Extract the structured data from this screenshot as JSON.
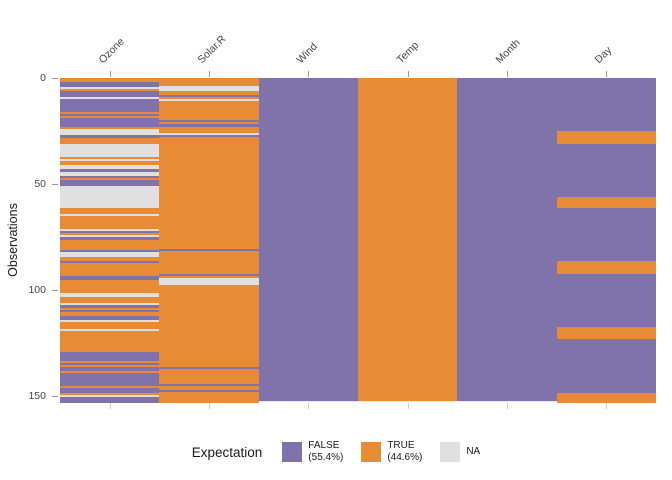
{
  "chart_data": {
    "type": "heatmap",
    "title": "",
    "xlabel": "",
    "ylabel": "Observations",
    "y_ticks": [
      0,
      50,
      100,
      150
    ],
    "n_rows": 153,
    "grid": false,
    "legend_position": "bottom",
    "columns": [
      "Ozone",
      "Solar.R",
      "Wind",
      "Temp",
      "Month",
      "Day"
    ],
    "encoding": {
      "T": "TRUE",
      "F": "FALSE",
      "N": "NA"
    },
    "series": [
      {
        "name": "Ozone",
        "cells": "TTFFNTFFFNFFFFFFTFTFFFFTNNNFTTTNNNNNNTNTTNNFNNFTFFFNNNNNNNNNNTTTNTTTTTTNFTNFTTTTTFNNTTFTTTTTTFFTTTTTTNNTTTNFTFTTFFNTTTNTTTTTTTTTTFFFFTFTFFTFFFFFFTFFTNFFF"
      },
      {
        "name": "Solar.R",
        "cells": "TTTTNNTTFTNTTTTTTTTTFTFTTTNFTTTTTTTTTTTTTTTTTTTTTTTTTTTTTTTTTTTTTTTTTTTTTTTTTTTTTFTTTTTTTTTTTFTNNNTTTTTTTTTTTTTTTTTTTTTTTTTTTTTTTTTTTTTTTFTTTTTTTFTTFTTTTT"
      },
      {
        "name": "Wind",
        "cells": "FFFFFFFFFFFFFFFFFFFFFFFFFFFFFFFFFFFFFFFFFFFFFFFFFFFFFFFFFFFFFFFFFFFFFFFFFFFFFFFFFFFFFFFFFFFFFFFFFFFFFFFFFFFFFFFFFFFFFFFFFFFFFFFFFFFFFFFFFFFFFFFFFFFFFFF"
      },
      {
        "name": "Temp",
        "cells": "TTTTTTTTTTTTTTTTTTTTTTTTTTTTTTTTTTTTTTTTTTTTTTTTTTTTTTTTTTTTTTTTTTTTTTTTTTTTTTTTTTTTTTTTTTTTTTTTTTTTTTTTTTTTTTTTTTTTTTTTTTTTTTTTTTTTTTTTTTTTTTTTTTTTTTT"
      },
      {
        "name": "Month",
        "cells": "FFFFFFFFFFFFFFFFFFFFFFFFFFFFFFFFFFFFFFFFFFFFFFFFFFFFFFFFFFFFFFFFFFFFFFFFFFFFFFFFFFFFFFFFFFFFFFFFFFFFFFFFFFFFFFFFFFFFFFFFFFFFFFFFFFFFFFFFFFFFFFFFFFFFFFF"
      },
      {
        "name": "Day",
        "cells": "FFFFFFFFFFFFFFFFFFFFFFFFFTTTTTTFFFFFFFFFFFFFFFFFFFFFFFFFTTTTTFFFFFFFFFFFFFFFFFFFFFFFFFTTTTTTFFFFFFFFFFFFFFFFFFFFFFFFFTTTTTTFFFFFFFFFFFFFFFFFFFFFFFFFTTTTT"
      }
    ]
  },
  "colors": {
    "T": "#e78c35",
    "F": "#8073ac",
    "N": "#e0e0e0",
    "axis_text": "#454545"
  },
  "legend": {
    "title": "Expectation",
    "items": [
      {
        "key": "F",
        "label": "FALSE",
        "sub": "(55.4%)"
      },
      {
        "key": "T",
        "label": "TRUE",
        "sub": "(44.6%)"
      },
      {
        "key": "N",
        "label": "NA",
        "sub": ""
      }
    ]
  }
}
